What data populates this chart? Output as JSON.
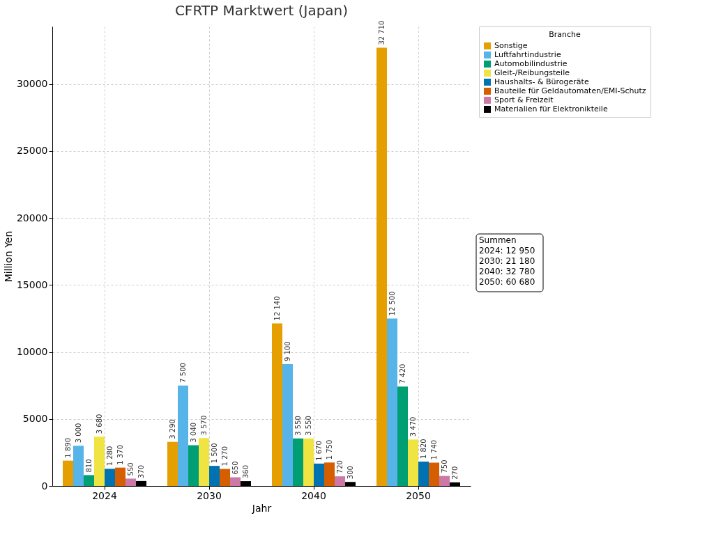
{
  "chart_data": {
    "type": "bar",
    "title": "CFRTP Marktwert (Japan)",
    "xlabel": "Jahr",
    "ylabel": "Million Yen",
    "legend_title": "Branche",
    "categories": [
      "2024",
      "2030",
      "2040",
      "2050"
    ],
    "series": [
      {
        "name": "Sonstige",
        "color": "#e69f00",
        "values": [
          1890,
          3290,
          12140,
          32710
        ],
        "value_labels": [
          "1 890",
          "3 290",
          "12 140",
          "32 710"
        ]
      },
      {
        "name": "Luftfahrtindustrie",
        "color": "#56b4e9",
        "values": [
          3000,
          7500,
          9100,
          12500
        ],
        "value_labels": [
          "3 000",
          "7 500",
          "9 100",
          "12 500"
        ]
      },
      {
        "name": "Automobilindustrie",
        "color": "#009e73",
        "values": [
          810,
          3040,
          3550,
          7420
        ],
        "value_labels": [
          "810",
          "3 040",
          "3 550",
          "7 420"
        ]
      },
      {
        "name": "Gleit-/Reibungsteile",
        "color": "#f0e442",
        "values": [
          3680,
          3570,
          3550,
          3470
        ],
        "value_labels": [
          "3 680",
          "3 570",
          "3 550",
          "3 470"
        ]
      },
      {
        "name": "Haushalts- & Bürogeräte",
        "color": "#0072b2",
        "values": [
          1280,
          1500,
          1670,
          1820
        ],
        "value_labels": [
          "1 280",
          "1 500",
          "1 670",
          "1 820"
        ]
      },
      {
        "name": "Bauteile für Geldautomaten/EMI-Schutz",
        "color": "#d55e00",
        "values": [
          1370,
          1270,
          1750,
          1740
        ],
        "value_labels": [
          "1 370",
          "1 270",
          "1 750",
          "1 740"
        ]
      },
      {
        "name": "Sport & Freizeit",
        "color": "#cc79a7",
        "values": [
          550,
          650,
          720,
          750
        ],
        "value_labels": [
          "550",
          "650",
          "720",
          "750"
        ]
      },
      {
        "name": "Materialien für Elektronikteile",
        "color": "#000000",
        "values": [
          370,
          360,
          300,
          270
        ],
        "value_labels": [
          "370",
          "360",
          "300",
          "270"
        ]
      }
    ],
    "ylim": [
      0,
      34300
    ],
    "yticks": [
      0,
      5000,
      10000,
      15000,
      20000,
      25000,
      30000
    ],
    "grid": true,
    "legend": "top right",
    "annotations": [
      "Summen",
      "2024: 12 950",
      "2030: 21 180",
      "2040: 32 780",
      "2050: 60 680"
    ]
  }
}
